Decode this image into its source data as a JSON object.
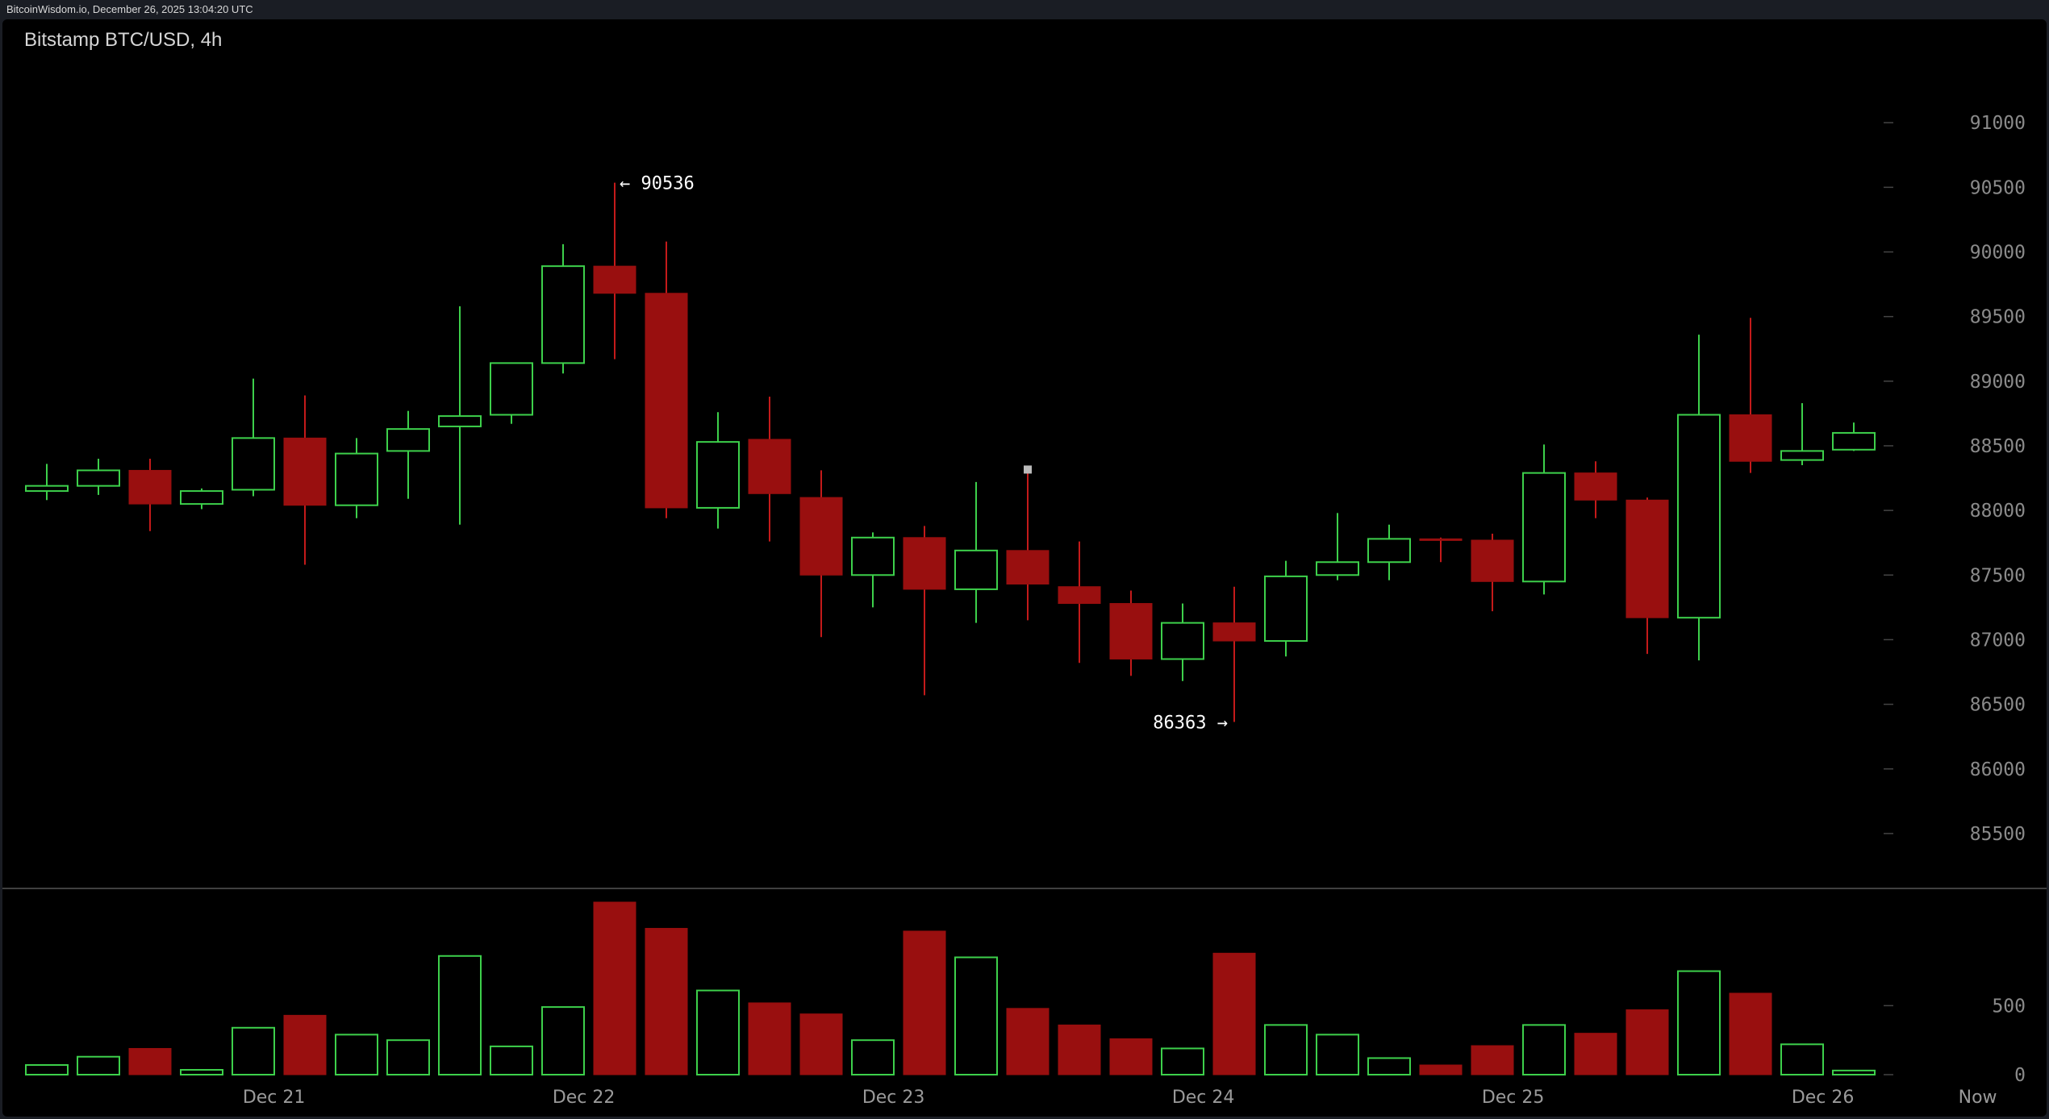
{
  "header": {
    "source_line": "BitcoinWisdom.io, December 26, 2025 13:04:20 UTC"
  },
  "chart_data": {
    "type": "candlestick",
    "title": "Bitstamp BTC/USD, 4h",
    "colors": {
      "up": "#3dd04b",
      "down": "#990f0f",
      "down_wick": "#c41a1a",
      "background": "#000000",
      "grid_tick": "#444444"
    },
    "price_axis": {
      "ylim": [
        85200,
        91600
      ],
      "ticks": [
        85500,
        86000,
        86500,
        87000,
        87500,
        88000,
        88500,
        89000,
        89500,
        90000,
        90500,
        91000
      ]
    },
    "volume_axis": {
      "ylim": [
        0,
        1250
      ],
      "ticks": [
        0,
        500
      ]
    },
    "x_axis": {
      "labels": [
        {
          "text": "Dec 21",
          "index": 4.4
        },
        {
          "text": "Dec 22",
          "index": 10.4
        },
        {
          "text": "Dec 23",
          "index": 16.4
        },
        {
          "text": "Dec 24",
          "index": 22.4
        },
        {
          "text": "Dec 25",
          "index": 28.4
        },
        {
          "text": "Dec 26",
          "index": 34.4
        },
        {
          "text": "Now",
          "index": 37.4
        }
      ]
    },
    "annotations": [
      {
        "text": "← 90536",
        "index": 11,
        "price": 90536,
        "side": "right"
      },
      {
        "text": "86363 →",
        "index": 23,
        "price": 86363,
        "side": "left"
      }
    ],
    "candles": [
      {
        "o": 88150,
        "h": 88360,
        "l": 88080,
        "c": 88190,
        "v": 70
      },
      {
        "o": 88190,
        "h": 88400,
        "l": 88120,
        "c": 88310,
        "v": 130
      },
      {
        "o": 88310,
        "h": 88400,
        "l": 87840,
        "c": 88050,
        "v": 190
      },
      {
        "o": 88050,
        "h": 88170,
        "l": 88010,
        "c": 88150,
        "v": 35
      },
      {
        "o": 88160,
        "h": 89020,
        "l": 88110,
        "c": 88560,
        "v": 340
      },
      {
        "o": 88560,
        "h": 88890,
        "l": 87580,
        "c": 88040,
        "v": 430
      },
      {
        "o": 88040,
        "h": 88560,
        "l": 87940,
        "c": 88440,
        "v": 290
      },
      {
        "o": 88460,
        "h": 88770,
        "l": 88090,
        "c": 88630,
        "v": 250
      },
      {
        "o": 88650,
        "h": 89580,
        "l": 87890,
        "c": 88730,
        "v": 860
      },
      {
        "o": 88740,
        "h": 89140,
        "l": 88670,
        "c": 89140,
        "v": 205
      },
      {
        "o": 89140,
        "h": 90060,
        "l": 89060,
        "c": 89890,
        "v": 490
      },
      {
        "o": 89890,
        "h": 90536,
        "l": 89170,
        "c": 89680,
        "v": 1250
      },
      {
        "o": 89680,
        "h": 90080,
        "l": 87940,
        "c": 88020,
        "v": 1060
      },
      {
        "o": 88020,
        "h": 88760,
        "l": 87860,
        "c": 88530,
        "v": 610
      },
      {
        "o": 88550,
        "h": 88880,
        "l": 87760,
        "c": 88130,
        "v": 520
      },
      {
        "o": 88100,
        "h": 88310,
        "l": 87020,
        "c": 87500,
        "v": 440
      },
      {
        "o": 87500,
        "h": 87830,
        "l": 87250,
        "c": 87790,
        "v": 250
      },
      {
        "o": 87790,
        "h": 87880,
        "l": 86570,
        "c": 87390,
        "v": 1040
      },
      {
        "o": 87390,
        "h": 88220,
        "l": 87130,
        "c": 87690,
        "v": 850
      },
      {
        "o": 87690,
        "h": 88310,
        "l": 87150,
        "c": 87430,
        "v": 480
      },
      {
        "o": 87410,
        "h": 87760,
        "l": 86820,
        "c": 87280,
        "v": 360
      },
      {
        "o": 87280,
        "h": 87380,
        "l": 86720,
        "c": 86850,
        "v": 260
      },
      {
        "o": 86850,
        "h": 87280,
        "l": 86680,
        "c": 87130,
        "v": 190
      },
      {
        "o": 87130,
        "h": 87410,
        "l": 86363,
        "c": 86990,
        "v": 880
      },
      {
        "o": 86990,
        "h": 87610,
        "l": 86870,
        "c": 87490,
        "v": 360
      },
      {
        "o": 87500,
        "h": 87980,
        "l": 87460,
        "c": 87600,
        "v": 290
      },
      {
        "o": 87600,
        "h": 87890,
        "l": 87460,
        "c": 87780,
        "v": 120
      },
      {
        "o": 87780,
        "h": 87790,
        "l": 87600,
        "c": 87770,
        "v": 70
      },
      {
        "o": 87770,
        "h": 87820,
        "l": 87220,
        "c": 87450,
        "v": 210
      },
      {
        "o": 87450,
        "h": 88510,
        "l": 87350,
        "c": 88290,
        "v": 360
      },
      {
        "o": 88290,
        "h": 88380,
        "l": 87940,
        "c": 88080,
        "v": 300
      },
      {
        "o": 88080,
        "h": 88100,
        "l": 86890,
        "c": 87170,
        "v": 470
      },
      {
        "o": 87170,
        "h": 89360,
        "l": 86840,
        "c": 88740,
        "v": 750
      },
      {
        "o": 88740,
        "h": 89490,
        "l": 88290,
        "c": 88380,
        "v": 590
      },
      {
        "o": 88390,
        "h": 88830,
        "l": 88350,
        "c": 88460,
        "v": 220
      },
      {
        "o": 88470,
        "h": 88680,
        "l": 88460,
        "c": 88600,
        "v": 30
      }
    ]
  }
}
